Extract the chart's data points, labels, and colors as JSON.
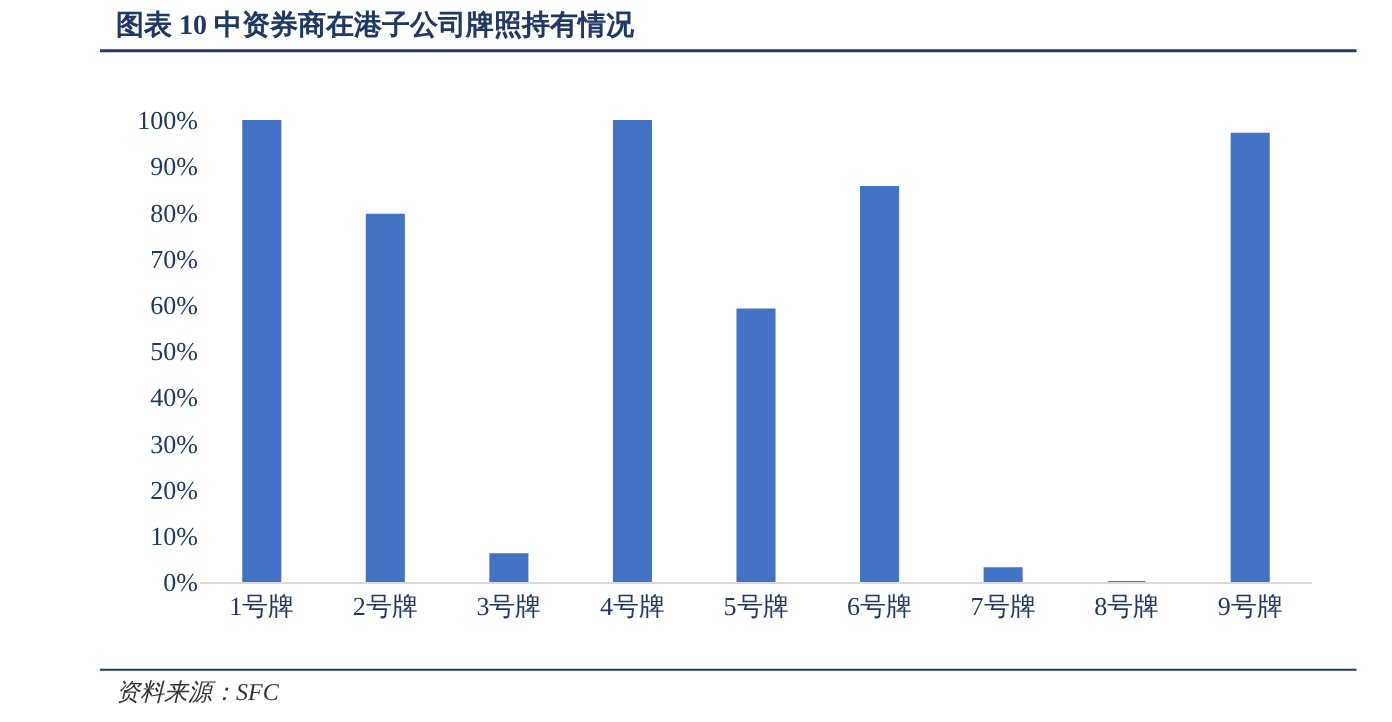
{
  "chart_data": {
    "type": "bar",
    "title": "图表 10 中资券商在港子公司牌照持有情况",
    "categories": [
      "1号牌",
      "2号牌",
      "3号牌",
      "4号牌",
      "5号牌",
      "6号牌",
      "7号牌",
      "8号牌",
      "9号牌"
    ],
    "values": [
      100,
      79.5,
      6,
      100,
      59,
      85.5,
      3,
      0,
      97
    ],
    "color": "#4472c4",
    "ylim": [
      0,
      100
    ],
    "yticks": [
      {
        "value": 0,
        "label": "0%"
      },
      {
        "value": 10,
        "label": "10%"
      },
      {
        "value": 20,
        "label": "20%"
      },
      {
        "value": 30,
        "label": "30%"
      },
      {
        "value": 40,
        "label": "40%"
      },
      {
        "value": 50,
        "label": "50%"
      },
      {
        "value": 60,
        "label": "60%"
      },
      {
        "value": 70,
        "label": "70%"
      },
      {
        "value": 80,
        "label": "80%"
      },
      {
        "value": 90,
        "label": "90%"
      },
      {
        "value": 100,
        "label": "100%"
      }
    ],
    "legend": false,
    "annotations": [
      "资料来源：SFC"
    ]
  }
}
